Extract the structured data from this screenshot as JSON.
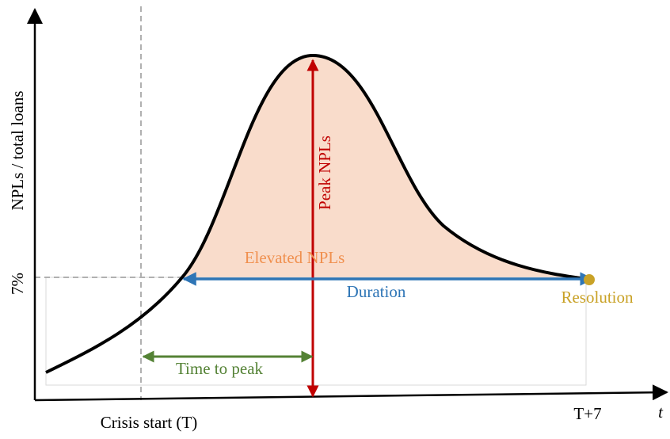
{
  "axes": {
    "y_label": "NPLs / total loans",
    "y_marker": "7%",
    "x_start": "Crisis start (T)",
    "x_end": "T+7",
    "x_symbol": "t"
  },
  "annotations": {
    "peak": "Peak NPLs",
    "elevated": "Elevated NPLs",
    "duration": "Duration",
    "resolution": "Resolution",
    "time_to_peak": "Time to peak"
  }
}
